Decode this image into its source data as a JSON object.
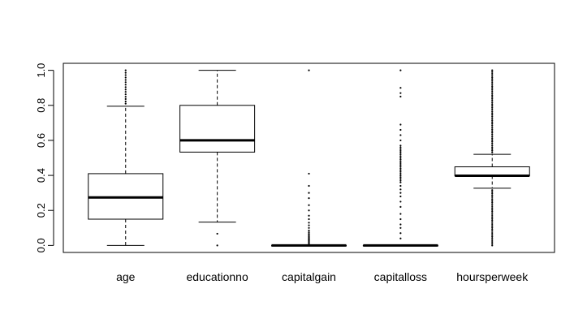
{
  "chart_data": {
    "type": "box",
    "title": "",
    "xlabel": "",
    "ylabel": "",
    "ylim": [
      -0.04,
      1.04
    ],
    "yticks": [
      "0.0",
      "0.2",
      "0.4",
      "0.6",
      "0.8",
      "1.0"
    ],
    "categories": [
      "age",
      "educationno",
      "capitalgain",
      "capitalloss",
      "hoursperweek"
    ],
    "boxes": [
      {
        "name": "age",
        "whisker_low": 0.0,
        "q1": 0.15,
        "median": 0.274,
        "q3": 0.41,
        "whisker_high": 0.795,
        "outliers": [
          0.81,
          0.822,
          0.836,
          0.849,
          0.863,
          0.877,
          0.89,
          0.904,
          0.918,
          0.932,
          0.945,
          0.959,
          0.973,
          0.986,
          1.0
        ]
      },
      {
        "name": "educationno",
        "whisker_low": 0.133,
        "q1": 0.533,
        "median": 0.6,
        "q3": 0.8,
        "whisker_high": 1.0,
        "outliers": [
          0.0,
          0.067
        ]
      },
      {
        "name": "capitalgain",
        "whisker_low": 0.0,
        "q1": 0.0,
        "median": 0.0,
        "q3": 0.0,
        "whisker_high": 0.0,
        "outliers": [
          0.006,
          0.011,
          0.016,
          0.021,
          0.026,
          0.031,
          0.036,
          0.041,
          0.046,
          0.051,
          0.058,
          0.066,
          0.075,
          0.085,
          0.1,
          0.115,
          0.13,
          0.15,
          0.17,
          0.2,
          0.23,
          0.27,
          0.3,
          0.34,
          0.41,
          1.0
        ]
      },
      {
        "name": "capitalloss",
        "whisker_low": 0.0,
        "q1": 0.0,
        "median": 0.0,
        "q3": 0.0,
        "whisker_high": 0.0,
        "outliers": [
          0.04,
          0.07,
          0.1,
          0.12,
          0.15,
          0.18,
          0.22,
          0.25,
          0.28,
          0.3,
          0.32,
          0.34,
          0.36,
          0.37,
          0.38,
          0.39,
          0.4,
          0.41,
          0.42,
          0.43,
          0.44,
          0.45,
          0.46,
          0.47,
          0.48,
          0.49,
          0.5,
          0.51,
          0.52,
          0.53,
          0.54,
          0.55,
          0.56,
          0.57,
          0.6,
          0.63,
          0.66,
          0.69,
          0.85,
          0.87,
          0.9,
          1.0
        ]
      },
      {
        "name": "hoursperweek",
        "whisker_low": 0.327,
        "q1": 0.398,
        "median": 0.398,
        "q3": 0.449,
        "whisker_high": 0.52,
        "outliers": [
          0.0,
          0.01,
          0.02,
          0.03,
          0.041,
          0.051,
          0.061,
          0.071,
          0.082,
          0.092,
          0.102,
          0.112,
          0.122,
          0.133,
          0.143,
          0.153,
          0.163,
          0.173,
          0.184,
          0.194,
          0.204,
          0.214,
          0.224,
          0.235,
          0.245,
          0.255,
          0.265,
          0.276,
          0.286,
          0.296,
          0.306,
          0.316,
          0.531,
          0.541,
          0.551,
          0.561,
          0.571,
          0.582,
          0.592,
          0.602,
          0.612,
          0.622,
          0.633,
          0.643,
          0.653,
          0.663,
          0.673,
          0.684,
          0.694,
          0.704,
          0.714,
          0.724,
          0.735,
          0.745,
          0.755,
          0.765,
          0.776,
          0.786,
          0.796,
          0.806,
          0.816,
          0.827,
          0.837,
          0.847,
          0.857,
          0.867,
          0.878,
          0.888,
          0.898,
          0.908,
          0.918,
          0.929,
          0.939,
          0.949,
          0.959,
          0.969,
          0.98,
          0.99,
          1.0
        ]
      }
    ]
  }
}
